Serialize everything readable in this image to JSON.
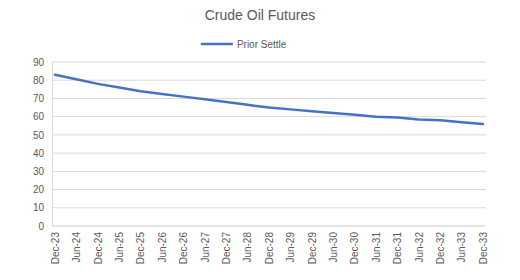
{
  "chart_data": {
    "type": "line",
    "title": "Crude Oil Futures",
    "categories": [
      "Dec-23",
      "Jun-24",
      "Dec-24",
      "Jun-25",
      "Dec-25",
      "Jun-26",
      "Dec-26",
      "Jun-27",
      "Dec-27",
      "Jun-28",
      "Dec-28",
      "Jun-29",
      "Dec-29",
      "Jun-30",
      "Dec-30",
      "Jun-31",
      "Dec-31",
      "Jun-32",
      "Dec-32",
      "Jun-33",
      "Dec-33"
    ],
    "series": [
      {
        "name": "Prior Settle",
        "color": "#4472c4",
        "values": [
          83,
          80.5,
          78,
          76,
          74,
          72.5,
          71,
          69.5,
          68,
          66.5,
          65,
          64,
          63,
          62,
          61,
          60,
          59.5,
          58.5,
          58,
          57,
          56
        ]
      }
    ],
    "ylim": [
      0,
      90
    ],
    "yticks": [
      0,
      10,
      20,
      30,
      40,
      50,
      60,
      70,
      80,
      90
    ],
    "grid": true,
    "legend": "top"
  }
}
